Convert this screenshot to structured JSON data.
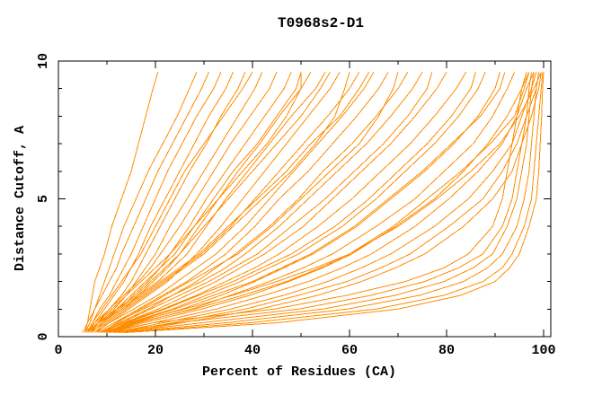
{
  "title": "T0968s2-D1",
  "colors": {
    "curve": "#ff8c00",
    "axis": "#000000",
    "background": "#ffffff",
    "text": "#000000"
  },
  "axes": {
    "x": {
      "label": "Percent of Residues (CA)",
      "min": 0,
      "max": 100,
      "major_ticks": [
        0,
        20,
        40,
        60,
        80,
        100
      ],
      "minor_ticks": [
        10,
        30,
        50,
        70,
        90
      ]
    },
    "y": {
      "label": "Distance Cutoff, A",
      "min": 0,
      "max": 10,
      "major_ticks": [
        0,
        5,
        10
      ],
      "minor_ticks": [
        1,
        2,
        3,
        4,
        6,
        7,
        8,
        9
      ]
    }
  },
  "chart_data": {
    "type": "line",
    "title": "T0968s2-D1",
    "xlabel": "Percent of Residues (CA)",
    "ylabel": "Distance Cutoff, A",
    "xlim": [
      0,
      101.5
    ],
    "ylim": [
      0,
      10
    ],
    "grid": false,
    "legend_position": "none",
    "cutoffs": [
      0.15,
      0.5,
      1,
      1.5,
      2,
      2.5,
      3,
      4,
      5,
      6,
      7,
      8,
      9,
      9.6
    ],
    "curves": [
      [
        5.5,
        6,
        6.5,
        7,
        7.5,
        8.5,
        9.5,
        11,
        13,
        15,
        16.5,
        18,
        19.5,
        20.5
      ],
      [
        5.5,
        6.5,
        7.5,
        8.5,
        9.5,
        10.5,
        11.5,
        13.5,
        16,
        18.5,
        21.5,
        24.5,
        27,
        28.5
      ],
      [
        5,
        6,
        7.5,
        9,
        10.5,
        12,
        13,
        15.5,
        18,
        20.5,
        23.5,
        26.5,
        29.5,
        31
      ],
      [
        6,
        7,
        8.5,
        10.5,
        12,
        13.5,
        15,
        17.5,
        20,
        22.5,
        25.5,
        28.5,
        32,
        33.5
      ],
      [
        6,
        7.5,
        9.5,
        11.5,
        13.5,
        15,
        16.5,
        19,
        22,
        25,
        28,
        31,
        34.5,
        36
      ],
      [
        6.5,
        8,
        10.5,
        13,
        15,
        16.5,
        18,
        21,
        24,
        27,
        30.5,
        33.5,
        37,
        38.5
      ],
      [
        6.5,
        8.5,
        11.5,
        14,
        16,
        18,
        20,
        23,
        26.5,
        30,
        33.5,
        37,
        40.5,
        42
      ],
      [
        5.5,
        7.5,
        10.5,
        13.5,
        16.5,
        19,
        21,
        25,
        28.5,
        32,
        35.5,
        39.5,
        43.5,
        45
      ],
      [
        7,
        9,
        12.5,
        15.5,
        18.5,
        21,
        23,
        27,
        30.5,
        34.5,
        38.5,
        42.5,
        46.5,
        48
      ],
      [
        7.5,
        9.5,
        13.5,
        16.5,
        19.5,
        22.5,
        25,
        29,
        33,
        37,
        41.5,
        45.5,
        50,
        52
      ],
      [
        6.5,
        8.5,
        12.5,
        16.5,
        20.5,
        23.5,
        26.5,
        30.5,
        34.5,
        39,
        43.5,
        48,
        53,
        55
      ],
      [
        7.5,
        10.5,
        14.5,
        18.5,
        22.5,
        25.5,
        28.5,
        33.5,
        38,
        42.5,
        47,
        51.5,
        56,
        58
      ],
      [
        6.5,
        9.5,
        13.5,
        17.5,
        21.5,
        25.5,
        29.5,
        35.5,
        40.5,
        45.5,
        50.5,
        55.5,
        60,
        62
      ],
      [
        7.5,
        10.5,
        15.5,
        20.5,
        24.5,
        28.5,
        32.5,
        38.5,
        43.5,
        48.5,
        53.5,
        58.5,
        63,
        65
      ],
      [
        8,
        11.5,
        16.5,
        21.5,
        26.5,
        30.5,
        34.5,
        40.5,
        45.5,
        51.5,
        56.5,
        61.5,
        66,
        68
      ],
      [
        8.5,
        12.5,
        18.5,
        23.5,
        28.5,
        32.5,
        36.5,
        43.5,
        49.5,
        54.5,
        60.5,
        65.5,
        70,
        72
      ],
      [
        8,
        11.5,
        17.5,
        23.5,
        29.5,
        34.5,
        38.5,
        45.5,
        51.5,
        57.5,
        63.5,
        68.5,
        73,
        75
      ],
      [
        8.5,
        13.5,
        20.5,
        26.5,
        32.5,
        37.5,
        42.5,
        50.5,
        56.5,
        62.5,
        68.5,
        73.5,
        78,
        80
      ],
      [
        9,
        13.5,
        21.5,
        28.5,
        34.5,
        40.5,
        45.5,
        53.5,
        60.5,
        66.5,
        72.5,
        77.5,
        82,
        84
      ],
      [
        9.5,
        14.5,
        23.5,
        30.5,
        37.5,
        43.5,
        49.5,
        58.5,
        65.5,
        71.5,
        77.5,
        82.5,
        86.5,
        88
      ],
      [
        9.5,
        15.5,
        25.5,
        33.5,
        40.5,
        46.5,
        52.5,
        61.5,
        68.5,
        75.5,
        81.5,
        86.5,
        90,
        91
      ],
      [
        10.5,
        16.5,
        27.5,
        35.5,
        43.5,
        50.5,
        56.5,
        65.5,
        73.5,
        79.5,
        85.5,
        89.5,
        92.5,
        94
      ],
      [
        10,
        17.5,
        29.5,
        39.5,
        47.5,
        54.5,
        60.5,
        69.5,
        77.5,
        83.5,
        88.5,
        92.5,
        95.5,
        97
      ],
      [
        10.5,
        19.5,
        32.5,
        42.5,
        51.5,
        58.5,
        64.5,
        73.5,
        80.5,
        86.5,
        91.5,
        94.5,
        96.5,
        98
      ],
      [
        11.5,
        21.5,
        35.5,
        46.5,
        55.5,
        62.5,
        68.5,
        77.5,
        84.5,
        89.5,
        93.5,
        95.5,
        97.5,
        98.5
      ],
      [
        12,
        23.5,
        38.5,
        49.5,
        59.5,
        66.5,
        72.5,
        80.5,
        87.5,
        91.5,
        94.5,
        96.5,
        98.5,
        99
      ],
      [
        13,
        25.5,
        41.5,
        53.5,
        62.5,
        69.5,
        75.5,
        83.5,
        89.5,
        93.5,
        95.5,
        97.5,
        99,
        99.5
      ],
      [
        9.5,
        19.5,
        44.5,
        59.5,
        71.5,
        79.5,
        84.5,
        89.5,
        91.5,
        92.5,
        93.5,
        94.5,
        95.5,
        96.5
      ],
      [
        10.5,
        24.5,
        49.5,
        64.5,
        75.5,
        82.5,
        87.5,
        91.5,
        93.5,
        94.5,
        95.5,
        96.5,
        97,
        97.5
      ],
      [
        11.5,
        29.5,
        54.5,
        69.5,
        79.5,
        85.5,
        89.5,
        92.5,
        94.5,
        95.5,
        96.5,
        97,
        97.5,
        98
      ],
      [
        12.5,
        34.5,
        59.5,
        74.5,
        83.5,
        88.5,
        91.5,
        94.5,
        96,
        97,
        97.5,
        98,
        98.5,
        99
      ],
      [
        13.5,
        39.5,
        65.5,
        79.5,
        87.5,
        91.5,
        93.5,
        96,
        97.5,
        98,
        98.5,
        99,
        99.5,
        99.8
      ],
      [
        6,
        7,
        9,
        11,
        13,
        15,
        17,
        20,
        23,
        26,
        30,
        34,
        38,
        40
      ],
      [
        7,
        8,
        11,
        14,
        17,
        20,
        23,
        28,
        32,
        36,
        41,
        45,
        49,
        50
      ],
      [
        8,
        10,
        14,
        18,
        22,
        26,
        30,
        36,
        42,
        48,
        53,
        57,
        59,
        60
      ],
      [
        9,
        12,
        17,
        22,
        27,
        32,
        37,
        44,
        50,
        56,
        62,
        66,
        69,
        70
      ],
      [
        9,
        13,
        19,
        25,
        31,
        36,
        41,
        48,
        55,
        61,
        67,
        72,
        76,
        77
      ],
      [
        10,
        14,
        22,
        29,
        36,
        42,
        48,
        57,
        64,
        70,
        76,
        81,
        85,
        86
      ],
      [
        10,
        15,
        24,
        32,
        40,
        46,
        52,
        61,
        68,
        75,
        81,
        87,
        91,
        92
      ],
      [
        7,
        9,
        13,
        17,
        21,
        25,
        29,
        35,
        41,
        47,
        52,
        58,
        62,
        64
      ],
      [
        6,
        8,
        12,
        16,
        19,
        22,
        25,
        30,
        35,
        40,
        45,
        50,
        54,
        56
      ],
      [
        10,
        16,
        28,
        38,
        47,
        54,
        60,
        69,
        76,
        83,
        89,
        94,
        96,
        97
      ],
      [
        7,
        9,
        12,
        15,
        18,
        21,
        24,
        28,
        33,
        38,
        43,
        47,
        50,
        50
      ],
      [
        14,
        45,
        70,
        83,
        90,
        93,
        95,
        97,
        98.5,
        99,
        99.3,
        99.6,
        99.8,
        100
      ],
      [
        9,
        15,
        26,
        36,
        45,
        53,
        60,
        70,
        78,
        85,
        91,
        95,
        98,
        99.5
      ]
    ]
  }
}
